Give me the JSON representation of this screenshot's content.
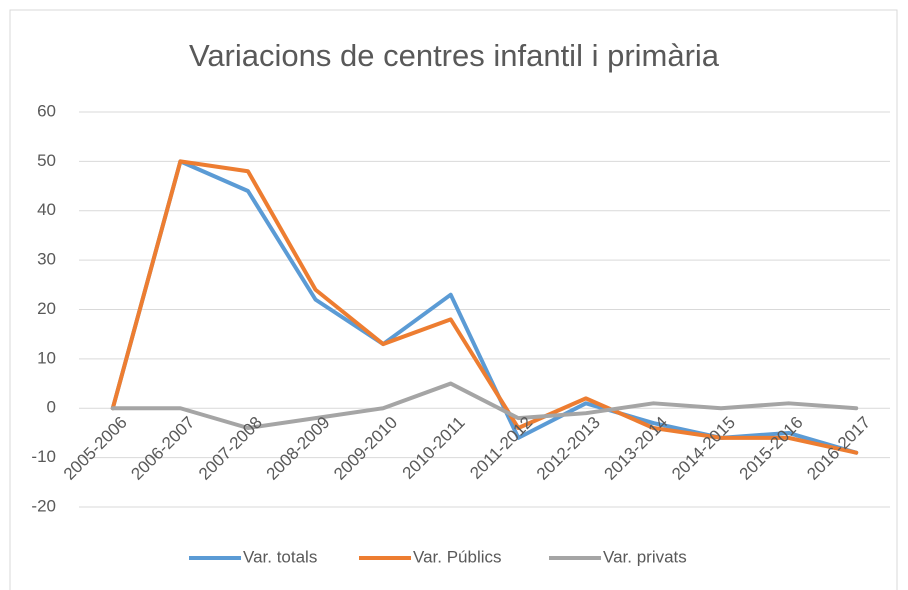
{
  "chart_data": {
    "type": "line",
    "title": "Variacions de centres infantil i primària",
    "categories": [
      "2005-2006",
      "2006-2007",
      "2007-2008",
      "2008-2009",
      "2009-2010",
      "2010-2011",
      "2011-2012",
      "2012-2013",
      "2013-2014",
      "2014-2015",
      "2015-2016",
      "2016-2017"
    ],
    "series": [
      {
        "name": "Var. totals",
        "color": "#5b9bd5",
        "values": [
          0,
          50,
          44,
          22,
          13,
          23,
          -6,
          1,
          -3,
          -6,
          -5,
          -9
        ]
      },
      {
        "name": "Var. Públics",
        "color": "#ed7d31",
        "values": [
          0,
          50,
          48,
          24,
          13,
          18,
          -4,
          2,
          -4,
          -6,
          -6,
          -9
        ]
      },
      {
        "name": "Var. privats",
        "color": "#a5a5a5",
        "values": [
          0,
          0,
          -4,
          -2,
          0,
          5,
          -2,
          -1,
          1,
          0,
          1,
          0
        ]
      }
    ],
    "ylim": [
      -20,
      60
    ],
    "yticks": [
      -20,
      -10,
      0,
      10,
      20,
      30,
      40,
      50,
      60
    ],
    "grid": true,
    "legend": "bottom"
  }
}
